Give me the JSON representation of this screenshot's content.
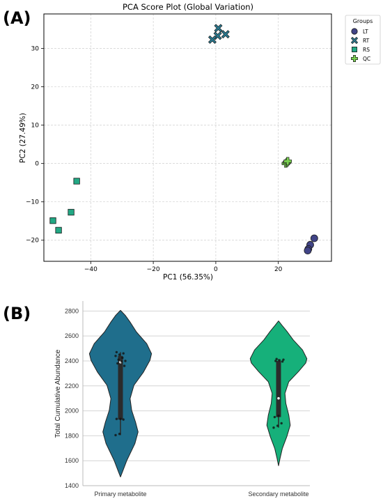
{
  "chart_data": [
    {
      "panel": "(A)",
      "type": "scatter",
      "title": "PCA Score Plot (Global Variation)",
      "xlabel": "PC1 (56.35%)",
      "ylabel": "PC2 (27.49%)",
      "xlim": [
        -55,
        37
      ],
      "ylim": [
        -25.5,
        39
      ],
      "xticks": [
        -40,
        -20,
        0,
        20
      ],
      "yticks": [
        -20,
        -10,
        0,
        10,
        20,
        30
      ],
      "grid": true,
      "legend": {
        "title": "Groups",
        "placement": "outside-right-top"
      },
      "series": [
        {
          "name": "LT",
          "marker": "circle",
          "color": "#414487",
          "points": [
            [
              31.5,
              -19.5
            ],
            [
              30.2,
              -21.2
            ],
            [
              29.6,
              -22.3
            ],
            [
              29.4,
              -22.7
            ]
          ]
        },
        {
          "name": "RT",
          "marker": "x",
          "color": "#2A788E",
          "points": [
            [
              0.8,
              35.3
            ],
            [
              3.1,
              33.7
            ],
            [
              0.6,
              33.3
            ],
            [
              -1.1,
              32.3
            ]
          ]
        },
        {
          "name": "RS",
          "marker": "square",
          "color": "#22A884",
          "points": [
            [
              -44.5,
              -4.6
            ],
            [
              -46.3,
              -12.7
            ],
            [
              -52.1,
              -14.9
            ],
            [
              -50.3,
              -17.4
            ]
          ]
        },
        {
          "name": "QC",
          "marker": "plus",
          "color": "#7AD151",
          "points": [
            [
              22.4,
              0.0
            ],
            [
              22.8,
              0.3
            ],
            [
              23.0,
              0.6
            ]
          ]
        }
      ]
    },
    {
      "panel": "(B)",
      "type": "violin",
      "title": "",
      "xlabel": "",
      "ylabel": "Total Cumulative Abundance",
      "ylim": [
        1400,
        2880
      ],
      "yticks": [
        1400,
        1600,
        1800,
        2000,
        2200,
        2400,
        2600,
        2800
      ],
      "grid": true,
      "categories": [
        "Primary metabolite",
        "Secondary metabolite"
      ],
      "colors": [
        "#1F6E8C",
        "#16B07A"
      ],
      "violins": [
        {
          "name": "Primary metabolite",
          "min": 1470,
          "max": 2805,
          "q1": 1930,
          "median": 2390,
          "q3": 2440,
          "points": [
            1805,
            1815,
            1930,
            1935,
            1935,
            2360,
            2380,
            2395,
            2400,
            2410,
            2425,
            2440,
            2450,
            2460,
            2470
          ]
        },
        {
          "name": "Secondary metabolite",
          "min": 1560,
          "max": 2720,
          "q1": 1950,
          "median": 2100,
          "q3": 2400,
          "points": [
            1865,
            1880,
            1900,
            1950,
            1960,
            2395,
            2400,
            2405,
            2410,
            2415
          ]
        }
      ]
    }
  ]
}
